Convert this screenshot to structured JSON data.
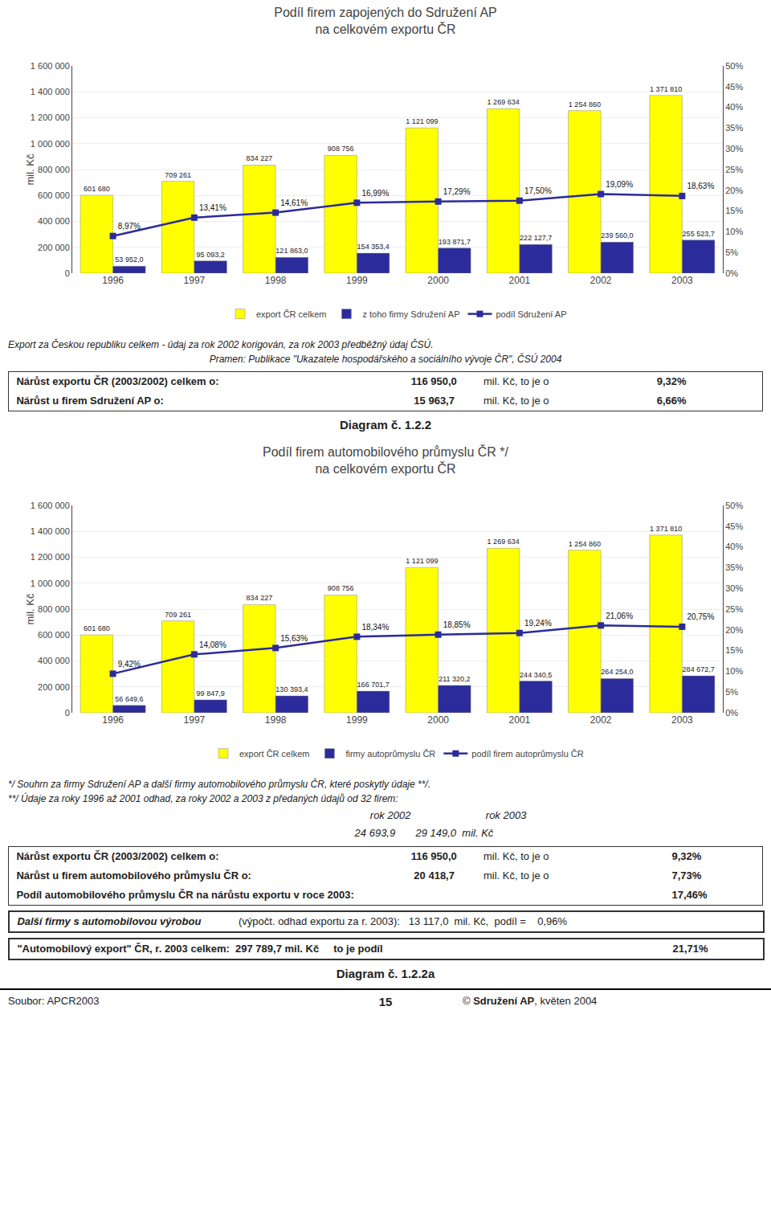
{
  "chart_data": [
    {
      "type": "bar",
      "title": "Podíl firem zapojených do Sdružení AP\nna celkovém exportu ČR",
      "ylabel": "mil. Kč",
      "categories": [
        "1996",
        "1997",
        "1998",
        "1999",
        "2000",
        "2001",
        "2002",
        "2003"
      ],
      "series": [
        {
          "name": "export ČR celkem",
          "type": "bar",
          "color": "#ffff00",
          "values": [
            601680,
            709261,
            834227,
            908756,
            1121099,
            1269634,
            1254860,
            1371810
          ],
          "value_labels": [
            "601 680",
            "709 261",
            "834 227",
            "908 756",
            "1 121 099",
            "1 269 634",
            "1 254 860",
            "1 371 810"
          ]
        },
        {
          "name": "z toho firmy Sdružení AP",
          "type": "bar",
          "color": "#2b2b9b",
          "values": [
            53952.0,
            95093.2,
            121863.0,
            154353.4,
            193871.7,
            222127.7,
            239560.0,
            255523.7
          ],
          "value_labels": [
            "53 952,0",
            "95 093,2",
            "121 863,0",
            "154 353,4",
            "193 871,7",
            "222 127,7",
            "239 560,0",
            "255 523,7"
          ]
        },
        {
          "name": "podíl Sdružení AP",
          "type": "line",
          "axis": "y2",
          "color": "#2b2b9b",
          "marker": "square",
          "values": [
            8.97,
            13.41,
            14.61,
            16.99,
            17.29,
            17.5,
            19.09,
            18.63
          ],
          "value_labels": [
            "8,97%",
            "13,41%",
            "14,61%",
            "16,99%",
            "17,29%",
            "17,50%",
            "19,09%",
            "18,63%"
          ]
        }
      ],
      "ylim": [
        0,
        1600000
      ],
      "yticks": [
        0,
        {
          "value": 200000,
          "label": "200 000"
        },
        {
          "value": 400000,
          "label": "400 000"
        },
        {
          "value": 600000,
          "label": "600 000"
        },
        {
          "value": 800000,
          "label": "800 000"
        },
        {
          "value": 1000000,
          "label": "1 000 000"
        },
        {
          "value": 1200000,
          "label": "1 200 000"
        },
        {
          "value": 1400000,
          "label": "1 400 000"
        },
        {
          "value": 1600000,
          "label": "1 600 000"
        }
      ],
      "y2lim": [
        0,
        50
      ],
      "y2ticks": [
        {
          "value": 0,
          "label": "0%"
        },
        {
          "value": 5,
          "label": "5%"
        },
        {
          "value": 10,
          "label": "10%"
        },
        {
          "value": 15,
          "label": "15%"
        },
        {
          "value": 20,
          "label": "20%"
        },
        {
          "value": 25,
          "label": "25%"
        },
        {
          "value": 30,
          "label": "30%"
        },
        {
          "value": 35,
          "label": "35%"
        },
        {
          "value": 40,
          "label": "40%"
        },
        {
          "value": 45,
          "label": "45%"
        },
        {
          "value": 50,
          "label": "50%"
        }
      ],
      "grid": true,
      "data_labels": true,
      "legend": "bottom",
      "annotations": [
        "Export za Českou republiku celkem - údaj za rok 2002 korigován, za rok 2003 předběžný údaj ČSÚ.",
        "Pramen: Publikace \"Ukazatele hospodářského a sociálního vývoje ČR\", ČSÚ 2004",
        [
          "Nárůst exportu ČR (2003/2002) celkem o:",
          " 116 950,0 ",
          "mil. Kč, to je o",
          "9,32%"
        ],
        [
          "Nárůst u firem Sdružení AP o:",
          "  15 963,7 ",
          "mil. Kč, to je o",
          "6,66%"
        ],
        "Diagram č. 1.2.2"
      ]
    },
    {
      "type": "bar",
      "title": "Podíl firem automobilového průmyslu ČR */\nna celkovém exportu ČR",
      "ylabel": "mil. Kč",
      "categories": [
        "1996",
        "1997",
        "1998",
        "1999",
        "2000",
        "2001",
        "2002",
        "2003"
      ],
      "series": [
        {
          "name": "export ČR celkem",
          "type": "bar",
          "color": "#ffff00",
          "values": [
            601680,
            709261,
            834227,
            908756,
            1121099,
            1269634,
            1254860,
            1371810
          ],
          "value_labels": [
            "601 680",
            "709 261",
            "834 227",
            "908 756",
            "1 121 099",
            "1 269 634",
            "1 254 860",
            "1 371 810"
          ]
        },
        {
          "name": "firmy autoprůmyslu ČR",
          "type": "bar",
          "color": "#2b2b9b",
          "values": [
            56649.6,
            99847.9,
            130393.4,
            166701.7,
            211320.2,
            244340.5,
            264254.0,
            284672.7
          ],
          "value_labels": [
            "56 649,6",
            "99 847,9",
            "130 393,4",
            "166 701,7",
            "211 320,2",
            "244 340,5",
            "264 254,0",
            "284 672,7"
          ]
        },
        {
          "name": "podíl firem autoprůmyslu ČR",
          "type": "line",
          "axis": "y2",
          "color": "#2b2b9b",
          "marker": "square",
          "values": [
            9.42,
            14.08,
            15.63,
            18.34,
            18.85,
            19.24,
            21.06,
            20.75
          ],
          "value_labels": [
            "9,42%",
            "14,08%",
            "15,63%",
            "18,34%",
            "18,85%",
            "19,24%",
            "21,06%",
            "20,75%"
          ]
        }
      ],
      "ylim": [
        0,
        1600000
      ],
      "yticks": [
        0,
        {
          "value": 200000,
          "label": "200 000"
        },
        {
          "value": 400000,
          "label": "400 000"
        },
        {
          "value": 600000,
          "label": "600 000"
        },
        {
          "value": 800000,
          "label": "800 000"
        },
        {
          "value": 1000000,
          "label": "1 000 000"
        },
        {
          "value": 1200000,
          "label": "1 200 000"
        },
        {
          "value": 1400000,
          "label": "1 400 000"
        },
        {
          "value": 1600000,
          "label": "1 600 000"
        }
      ],
      "y2lim": [
        0,
        50
      ],
      "y2ticks": [
        {
          "value": 0,
          "label": "0%"
        },
        {
          "value": 5,
          "label": "5%"
        },
        {
          "value": 10,
          "label": "10%"
        },
        {
          "value": 15,
          "label": "15%"
        },
        {
          "value": 20,
          "label": "20%"
        },
        {
          "value": 25,
          "label": "25%"
        },
        {
          "value": 30,
          "label": "30%"
        },
        {
          "value": 35,
          "label": "35%"
        },
        {
          "value": 40,
          "label": "40%"
        },
        {
          "value": 45,
          "label": "45%"
        },
        {
          "value": 50,
          "label": "50%"
        }
      ],
      "grid": true,
      "data_labels": true,
      "legend": "bottom",
      "annotations": [
        "*/ Souhrn za firmy Sdružení AP a další firmy automobilového průmyslu ČR, které poskytly údaje **/.",
        "**/ Údaje za roky 1996 až 2001 odhad, za roky 2002 a 2003 z předaných údajů od 32 firem:",
        [
          "rok 2002",
          "rok 2003"
        ],
        "24 693,9       29 149,0  mil. Kč",
        [
          "Nárůst exportu ČR (2003/2002) celkem o:",
          " 116 950,0 ",
          "mil. Kč, to je o",
          "9,32%"
        ],
        [
          "Nárůst u firem automobilového průmyslu ČR o:",
          "  20 418,7 ",
          "mil. Kč, to je o",
          "7,73%"
        ],
        [
          "Podíl automobilového průmyslu ČR na nárůstu exportu v roce 2003:",
          "17,46%"
        ],
        [
          "Další firmy s automobilovou výrobou",
          " (výpočt. odhad exportu za r. 2003):   13 117,0  mil. Kč,  podíl =    0,96%"
        ],
        [
          "\"Automobilový export\" ČR, r. 2003 celkem:  297 789,7 mil. Kč     to je podíl",
          "21,71%"
        ],
        "Diagram č. 1.2.2a",
        "Soubor: APCR2003",
        "15",
        [
          "©",
          "Sdružení AP",
          ", květen 2004"
        ]
      ]
    }
  ]
}
